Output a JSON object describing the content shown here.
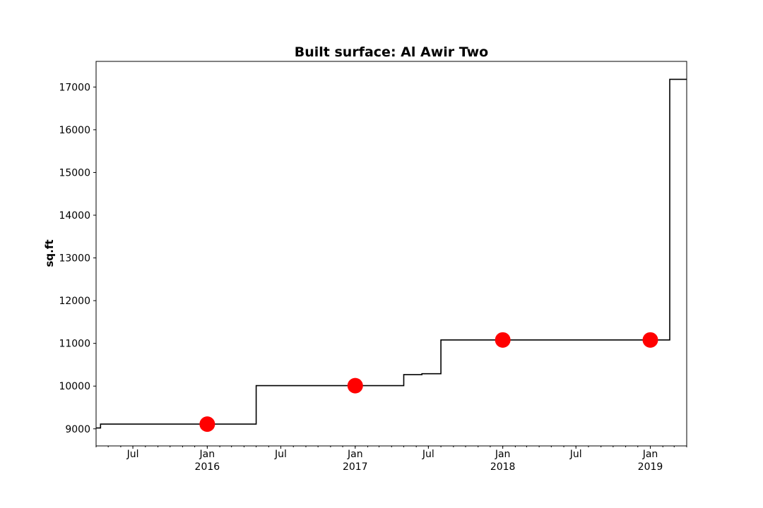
{
  "chart_data": {
    "type": "line",
    "title": "Built surface: Al Awir Two",
    "xlabel": "",
    "ylabel": "sq.ft",
    "x_axis_type": "date",
    "xlim": [
      "2015-04-01",
      "2019-04-01"
    ],
    "ylim": [
      8600,
      17600
    ],
    "y_ticks": [
      9000,
      10000,
      11000,
      12000,
      13000,
      14000,
      15000,
      16000,
      17000
    ],
    "x_ticks": [
      {
        "date": "2015-07-01",
        "label": "Jul",
        "sublabel": ""
      },
      {
        "date": "2016-01-01",
        "label": "Jan",
        "sublabel": "2016"
      },
      {
        "date": "2016-07-01",
        "label": "Jul",
        "sublabel": ""
      },
      {
        "date": "2017-01-01",
        "label": "Jan",
        "sublabel": "2017"
      },
      {
        "date": "2017-07-01",
        "label": "Jul",
        "sublabel": ""
      },
      {
        "date": "2018-01-01",
        "label": "Jan",
        "sublabel": "2018"
      },
      {
        "date": "2018-07-01",
        "label": "Jul",
        "sublabel": ""
      },
      {
        "date": "2019-01-01",
        "label": "Jan",
        "sublabel": "2019"
      }
    ],
    "grid": false,
    "series": [
      {
        "style": "step",
        "color": "#000000",
        "points": [
          {
            "date": "2015-04-01",
            "value": 9020
          },
          {
            "date": "2015-04-12",
            "value": 9110
          },
          {
            "date": "2016-05-01",
            "value": 10010
          },
          {
            "date": "2017-05-01",
            "value": 10270
          },
          {
            "date": "2017-06-15",
            "value": 10290
          },
          {
            "date": "2017-08-01",
            "value": 11080
          },
          {
            "date": "2019-02-18",
            "value": 17180
          },
          {
            "date": "2019-04-01",
            "value": 17180
          }
        ]
      },
      {
        "style": "markers",
        "color": "#ff0000",
        "points": [
          {
            "date": "2016-01-01",
            "value": 9110
          },
          {
            "date": "2017-01-01",
            "value": 10010
          },
          {
            "date": "2018-01-01",
            "value": 11080
          },
          {
            "date": "2019-01-01",
            "value": 11080
          }
        ]
      }
    ]
  }
}
